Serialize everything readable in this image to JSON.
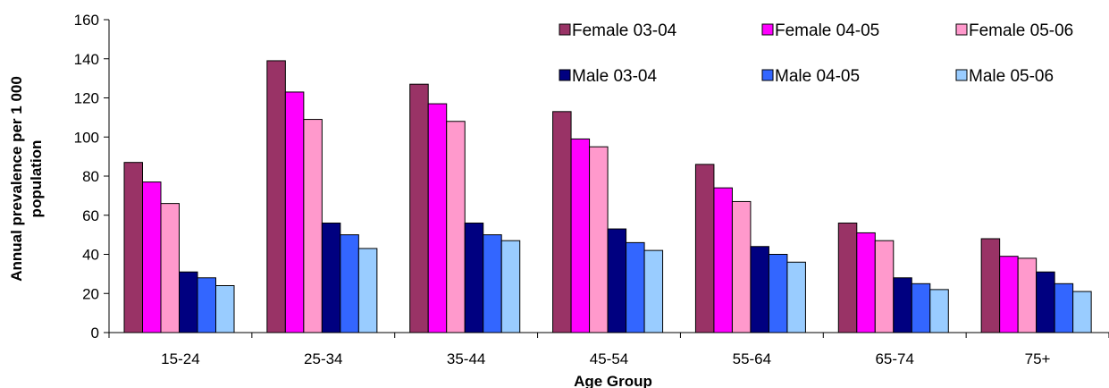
{
  "chart_data": {
    "type": "bar",
    "title": "",
    "xlabel": "Age Group",
    "ylabel": "Annual prevalence per 1 000 population",
    "ylim": [
      0,
      160
    ],
    "yticks": [
      "0",
      "20",
      "40",
      "60",
      "80",
      "100",
      "120",
      "140",
      "160"
    ],
    "categories": [
      "15-24",
      "25-34",
      "35-44",
      "45-54",
      "55-64",
      "65-74",
      "75+"
    ],
    "series": [
      {
        "name": "Female 03-04",
        "color": "#993366",
        "values": [
          87,
          139,
          127,
          113,
          86,
          56,
          48
        ]
      },
      {
        "name": "Female 04-05",
        "color": "#FF00FF",
        "values": [
          77,
          123,
          117,
          99,
          74,
          51,
          39
        ]
      },
      {
        "name": "Female 05-06",
        "color": "#FF99CC",
        "values": [
          66,
          109,
          108,
          95,
          67,
          47,
          38
        ]
      },
      {
        "name": "Male 03-04",
        "color": "#000080",
        "values": [
          31,
          56,
          56,
          53,
          44,
          28,
          31
        ]
      },
      {
        "name": "Male 04-05",
        "color": "#3366FF",
        "values": [
          28,
          50,
          50,
          46,
          40,
          25,
          25
        ]
      },
      {
        "name": "Male 05-06",
        "color": "#99CCFF",
        "values": [
          24,
          43,
          47,
          42,
          36,
          22,
          21
        ]
      }
    ],
    "grid": false,
    "legend": "top-right"
  }
}
